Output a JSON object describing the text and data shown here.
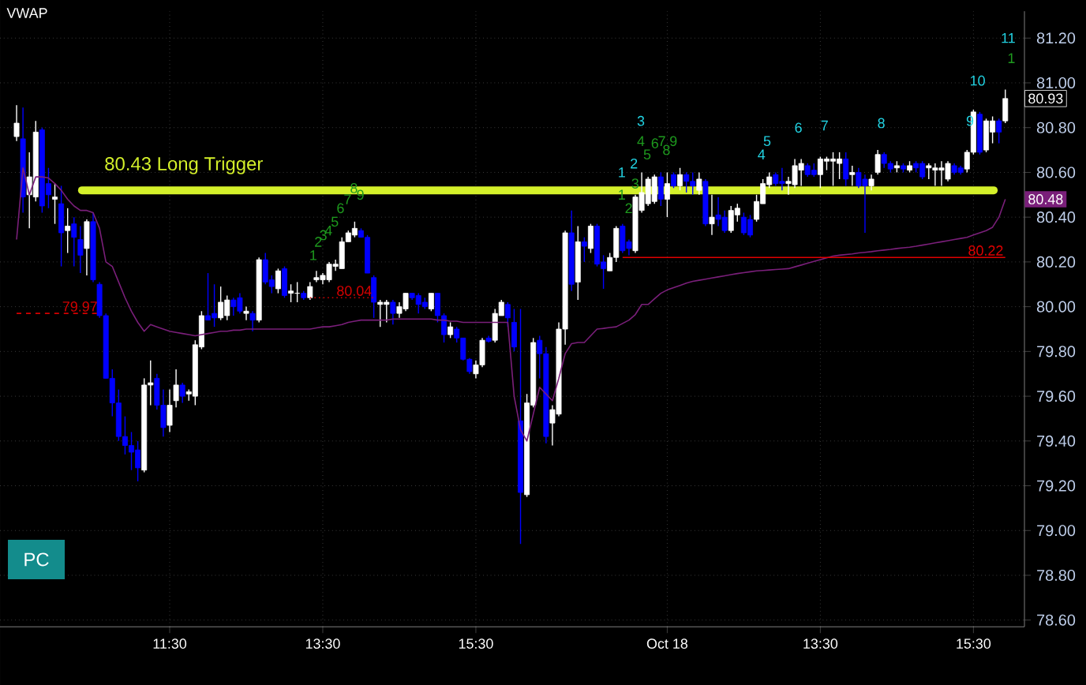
{
  "chart_data": {
    "type": "candlestick",
    "title": "VWAP",
    "categories": [
      null,
      null,
      null,
      null,
      null,
      null,
      null,
      null,
      null,
      null,
      null,
      null,
      null,
      null,
      null,
      null,
      null,
      null,
      null,
      null,
      null,
      null,
      null,
      null,
      "11:30",
      null,
      null,
      null,
      null,
      null,
      null,
      null,
      null,
      null,
      null,
      null,
      null,
      null,
      null,
      null,
      null,
      null,
      null,
      null,
      null,
      null,
      null,
      null,
      "13:30",
      null,
      null,
      null,
      null,
      null,
      null,
      null,
      null,
      null,
      null,
      null,
      null,
      null,
      null,
      null,
      null,
      null,
      null,
      null,
      null,
      null,
      null,
      null,
      "15:30",
      null,
      null,
      null,
      null,
      null,
      null,
      null,
      null,
      null,
      null,
      null,
      null,
      null,
      null,
      null,
      null,
      null,
      null,
      null,
      null,
      null,
      null,
      null,
      null,
      null,
      null,
      null,
      null,
      null,
      "Oct 18",
      null,
      null,
      null,
      null,
      null,
      null,
      null,
      null,
      null,
      null,
      null,
      null,
      null,
      null,
      null,
      null,
      null,
      null,
      null,
      null,
      null,
      null,
      null,
      "13:30",
      null,
      null,
      null,
      null,
      null,
      null,
      null,
      null,
      null,
      null,
      null,
      null,
      null,
      null,
      null,
      null,
      null,
      null,
      null,
      null,
      null,
      null,
      null,
      "15:30",
      null,
      null,
      null,
      null,
      null
    ],
    "ohlc": [
      [
        80.76,
        80.9,
        80.74,
        80.82
      ],
      [
        80.75,
        80.89,
        80.42,
        80.49
      ],
      [
        80.5,
        80.69,
        80.35,
        80.58
      ],
      [
        80.49,
        80.83,
        80.47,
        80.78
      ],
      [
        80.79,
        80.8,
        80.42,
        80.45
      ],
      [
        80.55,
        80.62,
        80.44,
        80.5
      ],
      [
        80.48,
        80.55,
        80.37,
        80.49
      ],
      [
        80.46,
        80.54,
        80.18,
        80.33
      ],
      [
        80.34,
        80.44,
        80.24,
        80.36
      ],
      [
        80.37,
        80.4,
        80.18,
        80.31
      ],
      [
        80.3,
        80.36,
        80.15,
        80.23
      ],
      [
        80.26,
        80.39,
        80.14,
        80.38
      ],
      [
        80.38,
        80.42,
        80.11,
        80.12
      ],
      [
        80.1,
        80.11,
        79.95,
        79.96
      ],
      [
        79.96,
        79.97,
        79.68,
        79.68
      ],
      [
        79.68,
        79.72,
        79.51,
        79.57
      ],
      [
        79.57,
        79.63,
        79.4,
        79.42
      ],
      [
        79.42,
        79.51,
        79.34,
        79.38
      ],
      [
        79.38,
        79.44,
        79.27,
        79.35
      ],
      [
        79.36,
        79.4,
        79.22,
        79.28
      ],
      [
        79.27,
        79.68,
        79.26,
        79.65
      ],
      [
        79.65,
        79.76,
        79.56,
        79.66
      ],
      [
        79.68,
        79.7,
        79.54,
        79.56
      ],
      [
        79.56,
        79.63,
        79.42,
        79.46
      ],
      [
        79.47,
        79.63,
        79.44,
        79.56
      ],
      [
        79.58,
        79.72,
        79.55,
        79.65
      ],
      [
        79.65,
        79.66,
        79.57,
        79.6
      ],
      [
        79.61,
        79.63,
        79.58,
        79.62
      ],
      [
        79.6,
        79.85,
        79.56,
        79.83
      ],
      [
        79.82,
        79.98,
        79.81,
        79.96
      ],
      [
        79.96,
        80.15,
        79.94,
        79.94
      ],
      [
        79.97,
        80.1,
        79.91,
        79.95
      ],
      [
        79.95,
        80.09,
        79.94,
        80.02
      ],
      [
        79.96,
        80.05,
        79.94,
        80.03
      ],
      [
        80.03,
        80.04,
        79.96,
        80.0
      ],
      [
        80.04,
        80.06,
        79.97,
        79.98
      ],
      [
        79.97,
        80.0,
        79.94,
        79.98
      ],
      [
        79.97,
        79.98,
        79.89,
        79.94
      ],
      [
        79.94,
        80.22,
        79.93,
        80.21
      ],
      [
        80.21,
        80.24,
        80.1,
        80.11
      ],
      [
        80.12,
        80.14,
        80.06,
        80.09
      ],
      [
        80.08,
        80.17,
        80.06,
        80.16
      ],
      [
        80.17,
        80.18,
        80.04,
        80.05
      ],
      [
        80.06,
        80.1,
        80.02,
        80.07
      ],
      [
        80.06,
        80.11,
        80.02,
        80.06
      ],
      [
        80.06,
        80.07,
        80.03,
        80.04
      ],
      [
        80.04,
        80.11,
        80.03,
        80.09
      ],
      [
        80.12,
        80.16,
        80.11,
        80.13
      ],
      [
        80.12,
        80.15,
        80.1,
        80.14
      ],
      [
        80.12,
        80.2,
        80.11,
        80.19
      ],
      [
        80.18,
        80.21,
        80.16,
        80.19
      ],
      [
        80.17,
        80.31,
        80.17,
        80.29
      ],
      [
        80.29,
        80.34,
        80.29,
        80.33
      ],
      [
        80.32,
        80.38,
        80.31,
        80.35
      ],
      [
        80.34,
        80.35,
        80.31,
        80.31
      ],
      [
        80.31,
        80.32,
        80.15,
        80.15
      ],
      [
        80.13,
        80.14,
        79.95,
        80.02
      ],
      [
        80.01,
        80.03,
        79.91,
        80.02
      ],
      [
        80.01,
        80.03,
        79.93,
        80.02
      ],
      [
        80.02,
        80.03,
        79.92,
        79.97
      ],
      [
        79.97,
        80.02,
        79.95,
        80.0
      ],
      [
        79.99,
        80.06,
        79.98,
        80.06
      ],
      [
        80.06,
        80.06,
        80.03,
        80.04
      ],
      [
        80.05,
        80.06,
        79.97,
        80.01
      ],
      [
        80.02,
        80.04,
        79.99,
        80.0
      ],
      [
        79.99,
        80.06,
        79.98,
        80.06
      ],
      [
        80.06,
        80.06,
        79.93,
        79.96
      ],
      [
        79.96,
        79.97,
        79.84,
        79.875
      ],
      [
        79.875,
        79.93,
        79.86,
        79.91
      ],
      [
        79.9,
        79.91,
        79.84,
        79.86
      ],
      [
        79.86,
        79.86,
        79.76,
        79.765
      ],
      [
        79.765,
        79.77,
        79.7,
        79.71
      ],
      [
        79.7,
        79.76,
        79.68,
        79.74
      ],
      [
        79.74,
        79.86,
        79.73,
        79.85
      ],
      [
        79.86,
        79.87,
        79.84,
        79.845
      ],
      [
        79.85,
        79.99,
        79.84,
        79.97
      ],
      [
        79.96,
        80.03,
        79.96,
        80.02
      ],
      [
        80.01,
        80.02,
        79.91,
        79.95
      ],
      [
        79.93,
        79.99,
        79.8,
        79.82
      ],
      [
        79.49,
        79.99,
        78.94,
        79.17
      ],
      [
        79.16,
        79.61,
        79.15,
        79.57
      ],
      [
        79.56,
        79.86,
        79.55,
        79.84
      ],
      [
        79.85,
        79.87,
        79.68,
        79.79
      ],
      [
        79.79,
        79.82,
        79.39,
        79.42
      ],
      [
        79.48,
        79.56,
        79.38,
        79.54
      ],
      [
        79.52,
        79.93,
        79.51,
        79.9
      ],
      [
        79.9,
        80.34,
        79.83,
        80.33
      ],
      [
        80.33,
        80.43,
        80.07,
        80.1
      ],
      [
        80.11,
        80.36,
        80.03,
        80.29
      ],
      [
        80.29,
        80.31,
        80.2,
        80.27
      ],
      [
        80.26,
        80.37,
        80.24,
        80.36
      ],
      [
        80.36,
        80.37,
        80.18,
        80.19
      ],
      [
        80.2,
        80.23,
        80.08,
        80.17
      ],
      [
        80.16,
        80.24,
        80.16,
        80.22
      ],
      [
        80.22,
        80.36,
        80.2,
        80.35
      ],
      [
        80.36,
        80.37,
        80.24,
        80.25
      ],
      [
        80.29,
        80.3,
        80.23,
        80.26
      ],
      [
        80.25,
        80.5,
        80.24,
        80.49
      ],
      [
        80.43,
        80.6,
        80.42,
        80.51
      ],
      [
        80.46,
        80.58,
        80.45,
        80.57
      ],
      [
        80.47,
        80.59,
        80.46,
        80.58
      ],
      [
        80.58,
        80.6,
        80.45,
        80.48
      ],
      [
        80.48,
        80.6,
        80.4,
        80.55
      ],
      [
        80.59,
        80.6,
        80.53,
        80.54
      ],
      [
        80.54,
        80.62,
        80.52,
        80.59
      ],
      [
        80.59,
        80.6,
        80.51,
        80.56
      ],
      [
        80.56,
        80.6,
        80.5,
        80.54
      ],
      [
        80.52,
        80.6,
        80.5,
        80.57
      ],
      [
        80.56,
        80.57,
        80.36,
        80.37
      ],
      [
        80.37,
        80.5,
        80.32,
        80.4
      ],
      [
        80.41,
        80.49,
        80.36,
        80.39
      ],
      [
        80.4,
        80.43,
        80.33,
        80.34
      ],
      [
        80.34,
        80.45,
        80.33,
        80.43
      ],
      [
        80.41,
        80.46,
        80.38,
        80.44
      ],
      [
        80.4,
        80.42,
        80.32,
        80.33
      ],
      [
        80.39,
        80.41,
        80.31,
        80.32
      ],
      [
        80.39,
        80.5,
        80.38,
        80.47
      ],
      [
        80.46,
        80.57,
        80.46,
        80.55
      ],
      [
        80.545,
        80.6,
        80.53,
        80.58
      ],
      [
        80.59,
        80.6,
        80.54,
        80.55
      ],
      [
        80.56,
        80.62,
        80.52,
        80.55
      ],
      [
        80.55,
        80.58,
        80.5,
        80.56
      ],
      [
        80.545,
        80.66,
        80.53,
        80.63
      ],
      [
        80.61,
        80.66,
        80.54,
        80.64
      ],
      [
        80.63,
        80.64,
        80.58,
        80.59
      ],
      [
        80.61,
        80.64,
        80.58,
        80.59
      ],
      [
        80.59,
        80.67,
        80.53,
        80.66
      ],
      [
        80.65,
        80.67,
        80.61,
        80.66
      ],
      [
        80.65,
        80.69,
        80.54,
        80.66
      ],
      [
        80.64,
        80.69,
        80.57,
        80.66
      ],
      [
        80.66,
        80.69,
        80.54,
        80.57
      ],
      [
        80.59,
        80.63,
        80.54,
        80.6
      ],
      [
        80.6,
        80.62,
        80.53,
        80.54
      ],
      [
        80.57,
        80.59,
        80.33,
        80.54
      ],
      [
        80.54,
        80.59,
        80.52,
        80.57
      ],
      [
        80.6,
        80.7,
        80.59,
        80.68
      ],
      [
        80.68,
        80.69,
        80.62,
        80.64
      ],
      [
        80.64,
        80.65,
        80.6,
        80.615
      ],
      [
        80.62,
        80.65,
        80.6,
        80.63
      ],
      [
        80.63,
        80.64,
        80.6,
        80.615
      ],
      [
        80.61,
        80.65,
        80.6,
        80.63
      ],
      [
        80.64,
        80.65,
        80.6,
        80.62
      ],
      [
        80.64,
        80.65,
        80.57,
        80.58
      ],
      [
        80.62,
        80.64,
        80.57,
        80.63
      ],
      [
        80.61,
        80.64,
        80.54,
        80.62
      ],
      [
        80.61,
        80.65,
        80.54,
        80.62
      ],
      [
        80.57,
        80.65,
        80.56,
        80.64
      ],
      [
        80.63,
        80.64,
        80.59,
        80.6
      ],
      [
        80.62,
        80.63,
        80.59,
        80.6
      ],
      [
        80.615,
        80.7,
        80.6,
        80.69
      ],
      [
        80.69,
        80.88,
        80.68,
        80.87
      ],
      [
        80.86,
        80.87,
        80.68,
        80.69
      ],
      [
        80.7,
        80.84,
        80.69,
        80.83
      ],
      [
        80.78,
        80.85,
        80.73,
        80.83
      ],
      [
        80.83,
        80.84,
        80.73,
        80.78
      ],
      [
        80.83,
        80.97,
        80.82,
        80.93
      ]
    ],
    "series": [
      {
        "type": "line",
        "color": "#7a1f7a",
        "values": [
          80.3,
          80.62,
          80.5,
          80.58,
          80.58,
          80.575,
          80.55,
          80.52,
          80.48,
          80.45,
          80.43,
          80.43,
          80.42,
          80.35,
          80.2,
          80.18,
          80.11,
          80.04,
          79.98,
          79.93,
          79.89,
          79.92,
          79.91,
          79.9,
          79.89,
          79.885,
          79.88,
          79.875,
          79.87,
          79.875,
          79.88,
          79.885,
          79.89,
          79.89,
          79.895,
          79.895,
          79.9,
          79.9,
          79.9,
          79.9,
          79.9,
          79.9,
          79.9,
          79.9,
          79.9,
          79.9,
          79.9,
          79.905,
          79.91,
          79.91,
          79.915,
          79.92,
          79.93,
          79.935,
          79.94,
          79.94,
          79.94,
          79.94,
          79.94,
          79.945,
          79.945,
          79.945,
          79.945,
          79.945,
          79.945,
          79.945,
          79.94,
          79.94,
          79.935,
          79.935,
          79.93,
          79.93,
          79.93,
          79.93,
          79.93,
          79.93,
          79.93,
          79.93,
          79.6,
          79.45,
          79.4,
          79.52,
          79.64,
          79.61,
          79.58,
          79.68,
          79.79,
          79.835,
          79.84,
          79.84,
          79.87,
          79.9,
          79.903,
          79.907,
          79.91,
          79.925,
          79.94,
          79.965,
          80.01,
          80.01,
          80.035,
          80.06,
          80.075,
          80.085,
          80.095,
          80.105,
          80.113,
          80.118,
          80.123,
          80.128,
          80.133,
          80.138,
          80.143,
          80.148,
          80.152,
          80.156,
          80.16,
          80.162,
          80.164,
          80.166,
          80.168,
          80.17,
          80.178,
          80.186,
          80.194,
          80.202,
          80.21,
          80.218,
          80.226,
          80.23,
          80.233,
          80.236,
          80.24,
          80.243,
          80.246,
          80.25,
          80.253,
          80.256,
          80.26,
          80.263,
          80.266,
          80.27,
          80.275,
          80.28,
          80.285,
          80.29,
          80.295,
          80.3,
          80.305,
          80.31,
          80.32,
          80.33,
          80.34,
          80.355,
          80.4,
          80.48
        ],
        "value_labels": [
          null,
          null,
          null,
          null,
          null,
          null,
          null,
          null,
          null,
          null,
          null,
          null,
          null,
          null,
          null,
          null,
          null,
          null,
          null,
          null,
          null,
          null,
          null,
          null,
          null,
          null,
          null,
          null,
          null,
          null,
          null,
          null,
          null,
          null,
          null,
          null,
          null,
          null,
          null,
          null,
          null,
          null,
          null,
          null,
          null,
          null,
          null,
          null,
          null,
          null,
          null,
          null,
          null,
          null,
          null,
          null,
          null,
          null,
          null,
          null,
          null,
          null,
          null,
          null,
          null,
          null,
          null,
          null,
          null,
          null,
          null,
          null,
          null,
          null,
          null,
          null,
          null,
          null,
          null,
          null,
          null,
          null,
          null,
          null,
          null,
          null,
          null,
          null,
          null,
          null,
          null,
          null,
          null,
          null,
          null,
          null,
          null,
          null,
          null,
          null,
          null,
          null,
          null,
          null,
          null,
          null,
          null,
          null,
          null,
          null,
          null,
          null,
          null,
          null,
          null,
          null,
          null,
          null,
          null,
          null,
          null,
          null,
          null,
          null,
          null,
          null,
          null,
          null,
          null,
          null,
          null,
          null,
          null,
          null,
          null,
          null,
          null,
          null,
          null,
          null,
          null,
          null,
          null,
          null,
          null,
          null,
          null,
          null,
          null,
          null,
          null,
          null,
          null,
          null,
          null,
          "80.48"
        ]
      },
      {
        "type": "line",
        "color": "#d40000",
        "line_style": "dashed",
        "values": [
          79.97,
          79.97,
          79.97,
          79.97,
          79.97,
          79.97,
          79.97,
          79.97,
          79.97,
          79.97,
          79.97,
          79.97,
          79.97,
          79.97,
          null,
          null,
          null,
          null,
          null,
          null,
          null,
          null,
          null,
          null,
          null,
          null,
          null,
          null,
          null,
          null,
          null,
          null,
          null,
          null,
          null,
          null,
          null,
          null,
          null,
          null,
          null,
          null,
          null,
          null,
          null,
          null,
          null,
          null,
          null,
          null,
          null,
          null,
          null,
          null,
          null,
          null,
          null,
          null,
          null,
          null,
          null,
          null,
          null,
          null,
          null,
          null,
          null,
          null,
          null,
          null,
          null,
          null,
          null,
          null,
          null,
          null,
          null,
          null,
          null,
          null,
          null,
          null,
          null,
          null,
          null,
          null,
          null,
          null,
          null,
          null,
          null,
          null,
          null,
          null,
          null,
          null,
          null,
          null,
          null,
          null,
          null,
          null,
          null,
          null,
          null,
          null,
          null,
          null,
          null,
          null,
          null,
          null,
          null,
          null,
          null,
          null,
          null,
          null,
          null,
          null,
          null,
          null,
          null,
          null,
          null,
          null,
          null,
          null,
          null,
          null,
          null,
          null,
          null,
          null,
          null,
          null,
          null,
          null,
          null,
          null,
          null,
          null,
          null,
          null,
          null,
          null,
          null,
          null,
          null,
          null,
          null,
          null,
          null,
          null,
          null,
          null
        ],
        "value_labels": [
          null,
          null,
          null,
          null,
          null,
          null,
          null,
          null,
          null,
          null,
          null,
          null,
          null,
          "79.97",
          null,
          null,
          null,
          null,
          null,
          null,
          null,
          null,
          null,
          null,
          null,
          null,
          null,
          null,
          null,
          null,
          null,
          null,
          null,
          null,
          null,
          null,
          null,
          null,
          null,
          null,
          null,
          null,
          null,
          null,
          null,
          null,
          null,
          null,
          null,
          null,
          null,
          null,
          null,
          null,
          null,
          null,
          null,
          null,
          null,
          null,
          null,
          null,
          null,
          null,
          null,
          null,
          null,
          null,
          null,
          null,
          null,
          null,
          null,
          null,
          null,
          null,
          null,
          null,
          null,
          null,
          null,
          null,
          null,
          null,
          null,
          null,
          null,
          null,
          null,
          null,
          null,
          null,
          null,
          null,
          null,
          null,
          null,
          null,
          null,
          null,
          null,
          null,
          null,
          null,
          null,
          null,
          null,
          null,
          null,
          null,
          null,
          null,
          null,
          null,
          null,
          null,
          null,
          null,
          null,
          null,
          null,
          null,
          null,
          null,
          null,
          null,
          null,
          null,
          null,
          null,
          null,
          null,
          null,
          null,
          null,
          null,
          null,
          null,
          null,
          null,
          null,
          null,
          null,
          null,
          null,
          null,
          null,
          null,
          null,
          null,
          null,
          null,
          null,
          null,
          null,
          null
        ]
      },
      {
        "type": "line",
        "color": "#d40000",
        "line_style": "dotted",
        "values": [
          null,
          null,
          null,
          null,
          null,
          null,
          null,
          null,
          null,
          null,
          null,
          null,
          null,
          null,
          null,
          null,
          null,
          null,
          null,
          null,
          null,
          null,
          null,
          null,
          null,
          null,
          null,
          null,
          null,
          null,
          null,
          null,
          null,
          null,
          null,
          null,
          null,
          null,
          null,
          null,
          null,
          null,
          null,
          null,
          null,
          null,
          80.04,
          80.04,
          80.04,
          80.04,
          80.04,
          80.04,
          80.04,
          80.04,
          80.04,
          80.04,
          80.04,
          null,
          null,
          null,
          null,
          null,
          null,
          null,
          null,
          null,
          null,
          null,
          null,
          null,
          null,
          null,
          null,
          null,
          null,
          null,
          null,
          null,
          null,
          null,
          null,
          null,
          null,
          null,
          null,
          null,
          null,
          null,
          null,
          null,
          null,
          null,
          null,
          null,
          null,
          null,
          null,
          null,
          null,
          null,
          null,
          null,
          null,
          null,
          null,
          null,
          null,
          null,
          null,
          null,
          null,
          null,
          null,
          null,
          null,
          null,
          null,
          null,
          null,
          null,
          null,
          null,
          null,
          null,
          null,
          null,
          null,
          null,
          null,
          null,
          null,
          null,
          null,
          null,
          null,
          null,
          null,
          null,
          null,
          null,
          null,
          null,
          null,
          null,
          null,
          null,
          null,
          null,
          null,
          null,
          null,
          null,
          null,
          null,
          null,
          null
        ],
        "value_labels": [
          null,
          null,
          null,
          null,
          null,
          null,
          null,
          null,
          null,
          null,
          null,
          null,
          null,
          null,
          null,
          null,
          null,
          null,
          null,
          null,
          null,
          null,
          null,
          null,
          null,
          null,
          null,
          null,
          null,
          null,
          null,
          null,
          null,
          null,
          null,
          null,
          null,
          null,
          null,
          null,
          null,
          null,
          null,
          null,
          null,
          null,
          null,
          null,
          null,
          null,
          null,
          null,
          null,
          null,
          null,
          null,
          "80.04",
          null,
          null,
          null,
          null,
          null,
          null,
          null,
          null,
          null,
          null,
          null,
          null,
          null,
          null,
          null,
          null,
          null,
          null,
          null,
          null,
          null,
          null,
          null,
          null,
          null,
          null,
          null,
          null,
          null,
          null,
          null,
          null,
          null,
          null,
          null,
          null,
          null,
          null,
          null,
          null,
          null,
          null,
          null,
          null,
          null,
          null,
          null,
          null,
          null,
          null,
          null,
          null,
          null,
          null,
          null,
          null,
          null,
          null,
          null,
          null,
          null,
          null,
          null,
          null,
          null,
          null,
          null,
          null,
          null,
          null,
          null,
          null,
          null,
          null,
          null,
          null,
          null,
          null,
          null,
          null,
          null,
          null,
          null,
          null,
          null,
          null,
          null,
          null,
          null,
          null,
          null,
          null,
          null,
          null,
          null,
          null,
          null,
          null,
          null
        ]
      },
      {
        "type": "line",
        "color": "#e00000",
        "line_style": "solid",
        "values": [
          null,
          null,
          null,
          null,
          null,
          null,
          null,
          null,
          null,
          null,
          null,
          null,
          null,
          null,
          null,
          null,
          null,
          null,
          null,
          null,
          null,
          null,
          null,
          null,
          null,
          null,
          null,
          null,
          null,
          null,
          null,
          null,
          null,
          null,
          null,
          null,
          null,
          null,
          null,
          null,
          null,
          null,
          null,
          null,
          null,
          null,
          null,
          null,
          null,
          null,
          null,
          null,
          null,
          null,
          null,
          null,
          null,
          null,
          null,
          null,
          null,
          null,
          null,
          null,
          null,
          null,
          null,
          null,
          null,
          null,
          null,
          null,
          null,
          null,
          null,
          null,
          null,
          null,
          null,
          null,
          null,
          null,
          null,
          null,
          null,
          null,
          null,
          null,
          null,
          null,
          null,
          null,
          null,
          null,
          null,
          80.22,
          80.22,
          80.22,
          80.22,
          80.22,
          80.22,
          80.22,
          80.22,
          80.22,
          80.22,
          80.22,
          80.22,
          80.22,
          80.22,
          80.22,
          80.22,
          80.22,
          80.22,
          80.22,
          80.22,
          80.22,
          80.22,
          80.22,
          80.22,
          80.22,
          80.22,
          80.22,
          80.22,
          80.22,
          80.22,
          80.22,
          80.22,
          80.22,
          80.22,
          80.22,
          80.22,
          80.22,
          80.22,
          80.22,
          80.22,
          80.22,
          80.22,
          80.22,
          80.22,
          80.22,
          80.22,
          80.22,
          80.22,
          80.22,
          80.22,
          80.22,
          80.22,
          80.22,
          80.22,
          80.22,
          80.22,
          80.22,
          80.22,
          80.22,
          80.22,
          80.22
        ],
        "value_labels": [
          null,
          null,
          null,
          null,
          null,
          null,
          null,
          null,
          null,
          null,
          null,
          null,
          null,
          null,
          null,
          null,
          null,
          null,
          null,
          null,
          null,
          null,
          null,
          null,
          null,
          null,
          null,
          null,
          null,
          null,
          null,
          null,
          null,
          null,
          null,
          null,
          null,
          null,
          null,
          null,
          null,
          null,
          null,
          null,
          null,
          null,
          null,
          null,
          null,
          null,
          null,
          null,
          null,
          null,
          null,
          null,
          null,
          null,
          null,
          null,
          null,
          null,
          null,
          null,
          null,
          null,
          null,
          null,
          null,
          null,
          null,
          null,
          null,
          null,
          null,
          null,
          null,
          null,
          null,
          null,
          null,
          null,
          null,
          null,
          null,
          null,
          null,
          null,
          null,
          null,
          null,
          null,
          null,
          null,
          null,
          null,
          null,
          null,
          null,
          null,
          null,
          null,
          null,
          null,
          null,
          null,
          null,
          null,
          null,
          null,
          null,
          null,
          null,
          null,
          null,
          null,
          null,
          null,
          null,
          null,
          null,
          null,
          null,
          null,
          null,
          null,
          null,
          null,
          null,
          null,
          null,
          null,
          null,
          null,
          null,
          null,
          null,
          null,
          null,
          null,
          null,
          null,
          null,
          null,
          null,
          null,
          null,
          null,
          null,
          null,
          null,
          null,
          null,
          null,
          null,
          "80.22"
        ]
      }
    ],
    "ref_lines": [
      {
        "axis": "y",
        "value": 80.52,
        "label": "80.43 Long Trigger",
        "color": "#d4f02a"
      }
    ],
    "annotations": [
      {
        "text": "80.93",
        "y": 80.93
      },
      "PC",
      "1",
      "2",
      "3",
      "4",
      "5",
      "6",
      "7",
      "8",
      "9",
      "1",
      "2",
      "3",
      "4",
      "5",
      "6",
      "7",
      "8",
      "9",
      "1",
      "1",
      "2",
      "3",
      "4",
      "5",
      "6",
      "7",
      "8",
      "9",
      "10",
      "11"
    ],
    "ylim": [
      78.57,
      81.32
    ],
    "yticks": [
      {
        "value": 78.6,
        "label": "78.60"
      },
      {
        "value": 78.8,
        "label": "78.80"
      },
      {
        "value": 79.0,
        "label": "79.00"
      },
      {
        "value": 79.2,
        "label": "79.20"
      },
      {
        "value": 79.4,
        "label": "79.40"
      },
      {
        "value": 79.6,
        "label": "79.60"
      },
      {
        "value": 79.8,
        "label": "79.80"
      },
      {
        "value": 80.0,
        "label": "80.00"
      },
      {
        "value": 80.2,
        "label": "80.20"
      },
      {
        "value": 80.4,
        "label": "80.40"
      },
      {
        "value": 80.6,
        "label": "80.60"
      },
      {
        "value": 80.8,
        "label": "80.80"
      },
      {
        "value": 81.0,
        "label": "81.00"
      },
      {
        "value": 81.2,
        "label": "81.20"
      }
    ],
    "grid": true
  }
}
